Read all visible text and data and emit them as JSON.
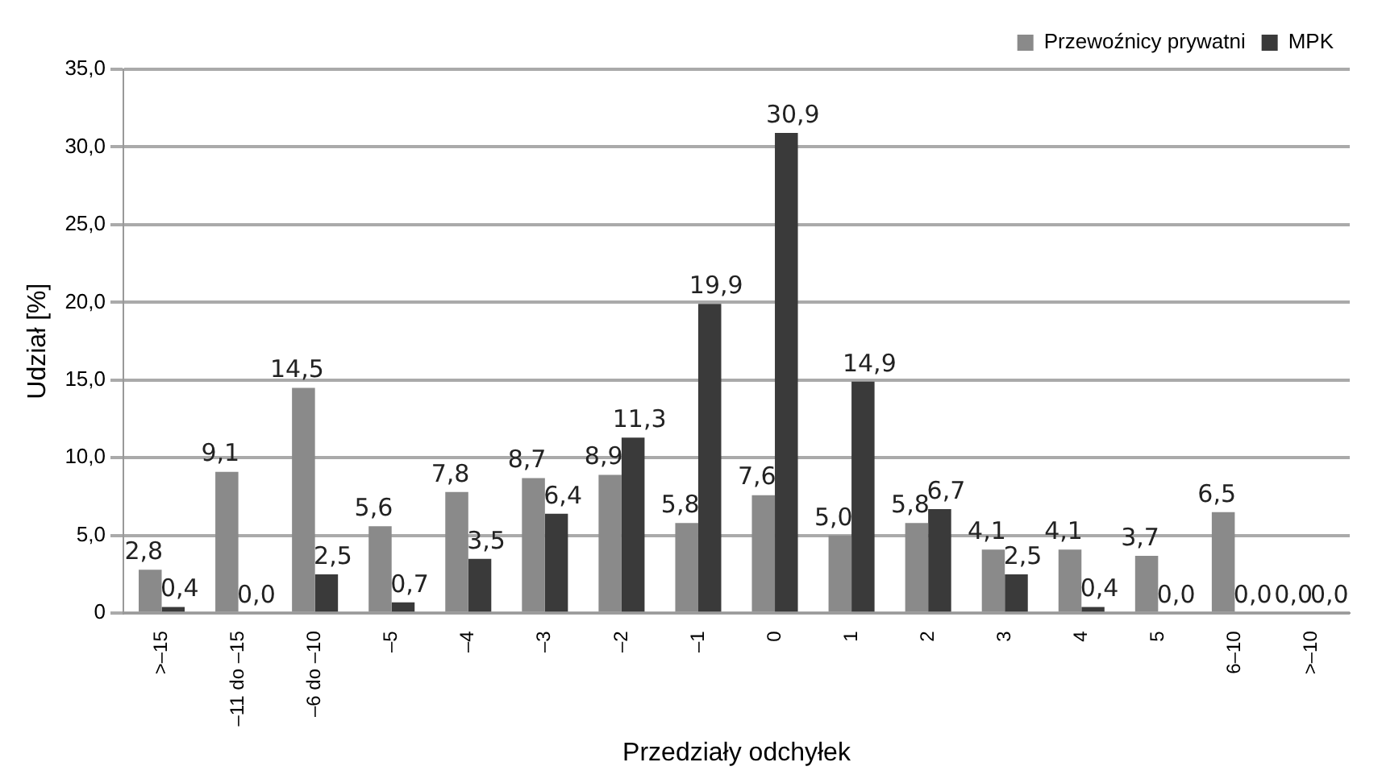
{
  "chart_data": {
    "type": "bar",
    "xlabel": "Przedziały odchyłek",
    "ylabel": "Udział [%]",
    "categories": [
      ">–15",
      "–11 do –15",
      "–6 do –10",
      "–5",
      "–4",
      "–3",
      "–2",
      "–1",
      "0",
      "1",
      "2",
      "3",
      "4",
      "5",
      "6–10",
      ">–10"
    ],
    "series": [
      {
        "name": "Przewoźnicy prywatni",
        "color": "#8a8a8a",
        "values": [
          2.8,
          9.1,
          14.5,
          5.6,
          7.8,
          8.7,
          8.9,
          5.8,
          7.6,
          5.0,
          5.8,
          4.1,
          4.1,
          3.7,
          6.5,
          0.0
        ],
        "value_labels": [
          "2,8",
          "9,1",
          "14,5",
          "5,6",
          "7,8",
          "8,7",
          "8,9",
          "5,8",
          "7,6",
          "5,0",
          "5,8",
          "4,1",
          "4,1",
          "3,7",
          "6,5",
          "0,0"
        ]
      },
      {
        "name": "MPK",
        "color": "#3a3a3a",
        "values": [
          0.4,
          0.0,
          2.5,
          0.7,
          3.5,
          6.4,
          11.3,
          19.9,
          30.9,
          14.9,
          6.7,
          2.5,
          0.4,
          0.0,
          0.0,
          0.0
        ],
        "value_labels": [
          "0,4",
          "0,0",
          "2,5",
          "0,7",
          "3,5",
          "6,4",
          "11,3",
          "19,9",
          "30,9",
          "14,9",
          "6,7",
          "2,5",
          "0,4",
          "0,0",
          "0,0",
          "0,0"
        ]
      }
    ],
    "ylim": [
      0,
      35
    ],
    "yticks": [
      {
        "value": 0,
        "label": "0"
      },
      {
        "value": 5,
        "label": "5,0"
      },
      {
        "value": 10,
        "label": "10,0"
      },
      {
        "value": 15,
        "label": "15,0"
      },
      {
        "value": 20,
        "label": "20,0"
      },
      {
        "value": 25,
        "label": "25,0"
      },
      {
        "value": 30,
        "label": "30,0"
      },
      {
        "value": 35,
        "label": "35,0"
      }
    ],
    "grid": "y",
    "legend": "top right"
  }
}
